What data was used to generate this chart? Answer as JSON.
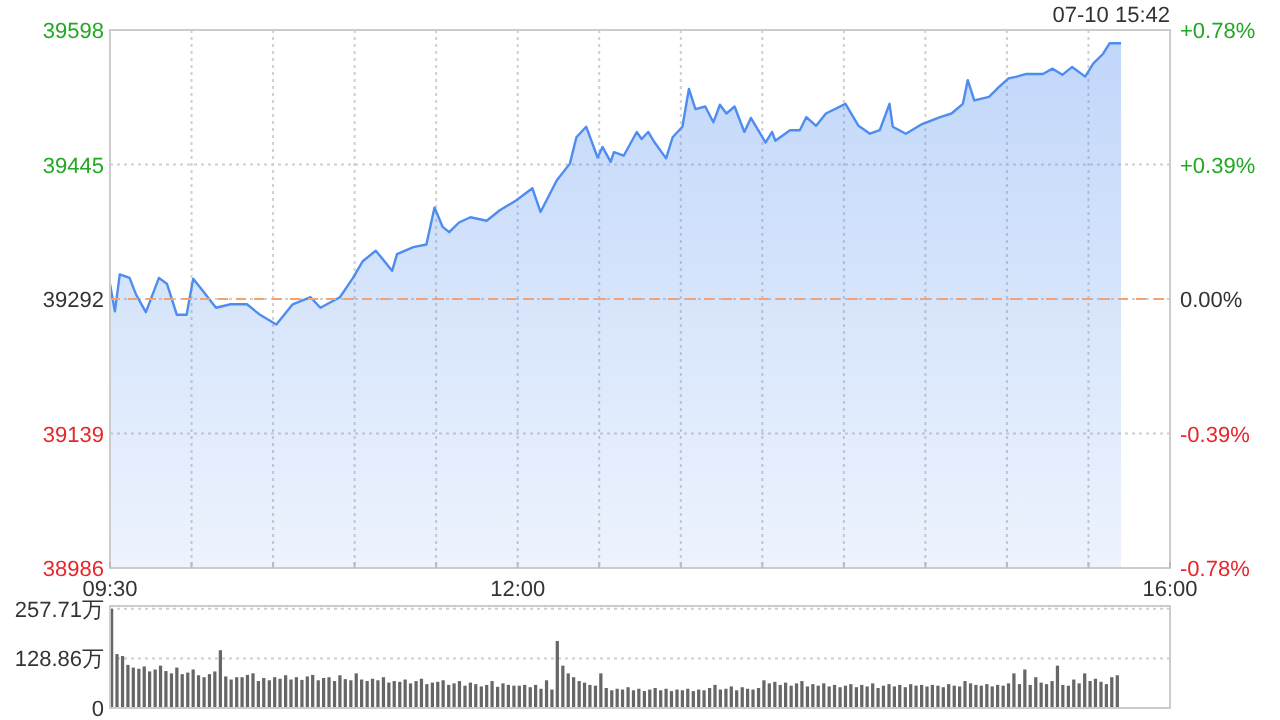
{
  "chart_data": [
    {
      "type": "area",
      "annotations": [
        "07-10 15:42"
      ],
      "xlim": [
        9.5,
        16
      ],
      "ylim": [
        38986,
        39598
      ],
      "y2lim": [
        -0.78,
        0.78
      ],
      "xticks": [
        {
          "value": 9.5,
          "label": "09:30"
        },
        {
          "value": 10,
          "label": null
        },
        {
          "value": 10.5,
          "label": null
        },
        {
          "value": 11,
          "label": null
        },
        {
          "value": 11.5,
          "label": null
        },
        {
          "value": 12,
          "label": "12:00"
        },
        {
          "value": 12.5,
          "label": null
        },
        {
          "value": 13,
          "label": null
        },
        {
          "value": 13.5,
          "label": null
        },
        {
          "value": 14,
          "label": null
        },
        {
          "value": 14.5,
          "label": null
        },
        {
          "value": 15,
          "label": null
        },
        {
          "value": 15.5,
          "label": null
        },
        {
          "value": 16,
          "label": "16:00"
        }
      ],
      "yticks": [
        38986,
        39139,
        39292,
        39445,
        39598
      ],
      "y2ticks": [
        {
          "value": -0.78,
          "label": "-0.78%"
        },
        {
          "value": -0.39,
          "label": "-0.39%"
        },
        {
          "value": 0,
          "label": "0.00%"
        },
        {
          "value": 0.39,
          "label": "+0.39%"
        },
        {
          "value": 0.78,
          "label": "+0.78%"
        }
      ],
      "grid": true,
      "ref_lines": [
        {
          "axis": "y",
          "value": 39292,
          "color": "#f4a26e",
          "line_style": "dashed"
        }
      ],
      "series": [
        {
          "color": "#4e8cf0",
          "x": [
            9.5,
            9.53,
            9.56,
            9.62,
            9.66,
            9.72,
            9.8,
            9.85,
            9.91,
            9.97,
            10.01,
            10.07,
            10.15,
            10.24,
            10.34,
            10.42,
            10.52,
            10.62,
            10.73,
            10.79,
            10.91,
            10.99,
            11.05,
            11.13,
            11.23,
            11.26,
            11.36,
            11.44,
            11.49,
            11.54,
            11.58,
            11.64,
            11.71,
            11.81,
            11.89,
            11.99,
            12.09,
            12.14,
            12.24,
            12.32,
            12.36,
            12.42,
            12.49,
            12.52,
            12.57,
            12.59,
            12.65,
            12.73,
            12.76,
            12.8,
            12.84,
            12.91,
            12.95,
            13.01,
            13.05,
            13.09,
            13.15,
            13.2,
            13.24,
            13.28,
            13.33,
            13.39,
            13.43,
            13.52,
            13.56,
            13.58,
            13.67,
            13.73,
            13.77,
            13.83,
            13.89,
            14.01,
            14.09,
            14.16,
            14.22,
            14.28,
            14.3,
            14.38,
            14.48,
            14.59,
            14.66,
            14.73,
            14.76,
            14.8,
            14.89,
            14.95,
            15.01,
            15.06,
            15.12,
            15.22,
            15.28,
            15.34,
            15.4,
            15.48,
            15.53,
            15.59,
            15.63,
            15.7
          ],
          "values": [
            39309,
            39278,
            39320,
            39316,
            39297,
            39277,
            39316,
            39309,
            39274,
            39274,
            39315,
            39301,
            39282,
            39286,
            39286,
            39274,
            39263,
            39286,
            39294,
            39282,
            39294,
            39316,
            39335,
            39347,
            39324,
            39343,
            39351,
            39354,
            39396,
            39374,
            39368,
            39379,
            39385,
            39381,
            39393,
            39404,
            39418,
            39391,
            39427,
            39446,
            39476,
            39488,
            39453,
            39465,
            39448,
            39459,
            39455,
            39482,
            39474,
            39482,
            39470,
            39452,
            39476,
            39488,
            39531,
            39508,
            39511,
            39493,
            39513,
            39503,
            39511,
            39482,
            39498,
            39470,
            39482,
            39472,
            39484,
            39484,
            39499,
            39489,
            39503,
            39514,
            39489,
            39480,
            39484,
            39514,
            39488,
            39480,
            39491,
            39499,
            39503,
            39514,
            39541,
            39518,
            39522,
            39533,
            39543,
            39545,
            39548,
            39548,
            39554,
            39547,
            39556,
            39545,
            39560,
            39571,
            39583,
            39583
          ]
        }
      ]
    },
    {
      "type": "bar",
      "xlim": [
        9.5,
        16
      ],
      "ylim": [
        0,
        265
      ],
      "tick_labels": "y",
      "grid": "y",
      "yticks": [
        0,
        {
          "value": 128.86,
          "label": "128.86万"
        },
        {
          "value": 257.71,
          "label": "257.71万"
        }
      ],
      "series": [
        {
          "color": "#666666",
          "x": [
            9.5,
            9.533,
            9.567,
            9.6,
            9.633,
            9.667,
            9.7,
            9.733,
            9.767,
            9.8,
            9.833,
            9.867,
            9.9,
            9.933,
            9.967,
            10,
            10.033,
            10.067,
            10.1,
            10.133,
            10.167,
            10.2,
            10.233,
            10.267,
            10.3,
            10.333,
            10.367,
            10.4,
            10.433,
            10.467,
            10.5,
            10.533,
            10.567,
            10.6,
            10.633,
            10.667,
            10.7,
            10.733,
            10.767,
            10.8,
            10.833,
            10.867,
            10.9,
            10.933,
            10.967,
            11,
            11.033,
            11.067,
            11.1,
            11.133,
            11.167,
            11.2,
            11.233,
            11.267,
            11.3,
            11.333,
            11.367,
            11.4,
            11.433,
            11.467,
            11.5,
            11.533,
            11.567,
            11.6,
            11.633,
            11.667,
            11.7,
            11.733,
            11.767,
            11.8,
            11.833,
            11.867,
            11.9,
            11.933,
            11.967,
            12,
            12.033,
            12.067,
            12.1,
            12.133,
            12.167,
            12.2,
            12.233,
            12.267,
            12.3,
            12.333,
            12.367,
            12.4,
            12.433,
            12.467,
            12.5,
            12.533,
            12.567,
            12.6,
            12.633,
            12.667,
            12.7,
            12.733,
            12.767,
            12.8,
            12.833,
            12.867,
            12.9,
            12.933,
            12.967,
            13,
            13.033,
            13.067,
            13.1,
            13.133,
            13.167,
            13.2,
            13.233,
            13.267,
            13.3,
            13.333,
            13.367,
            13.4,
            13.433,
            13.467,
            13.5,
            13.533,
            13.567,
            13.6,
            13.633,
            13.667,
            13.7,
            13.733,
            13.767,
            13.8,
            13.833,
            13.867,
            13.9,
            13.933,
            13.967,
            14,
            14.033,
            14.067,
            14.1,
            14.133,
            14.167,
            14.2,
            14.233,
            14.267,
            14.3,
            14.333,
            14.367,
            14.4,
            14.433,
            14.467,
            14.5,
            14.533,
            14.567,
            14.6,
            14.633,
            14.667,
            14.7,
            14.733,
            14.767,
            14.8,
            14.833,
            14.867,
            14.9,
            14.933,
            14.967,
            15,
            15.033,
            15.067,
            15.1,
            15.133,
            15.167,
            15.2,
            15.233,
            15.267,
            15.3,
            15.333,
            15.367,
            15.4,
            15.433,
            15.467,
            15.5,
            15.533,
            15.567,
            15.6,
            15.633,
            15.667
          ],
          "values": [
            257.71,
            140,
            135,
            112,
            105,
            102,
            108,
            95,
            100,
            110,
            96,
            90,
            105,
            88,
            92,
            100,
            85,
            80,
            88,
            95,
            150,
            82,
            74,
            80,
            80,
            86,
            90,
            70,
            78,
            72,
            80,
            76,
            85,
            74,
            80,
            73,
            82,
            86,
            72,
            78,
            80,
            70,
            85,
            75,
            72,
            90,
            74,
            70,
            76,
            72,
            80,
            66,
            70,
            68,
            74,
            64,
            70,
            76,
            62,
            66,
            68,
            72,
            60,
            64,
            70,
            58,
            66,
            62,
            56,
            60,
            70,
            55,
            64,
            60,
            58,
            58,
            60,
            54,
            60,
            50,
            72,
            48,
            174,
            110,
            90,
            80,
            70,
            66,
            60,
            58,
            90,
            52,
            46,
            50,
            48,
            54,
            46,
            50,
            44,
            48,
            52,
            46,
            50,
            44,
            48,
            46,
            50,
            44,
            48,
            46,
            52,
            60,
            48,
            50,
            56,
            46,
            54,
            50,
            48,
            52,
            72,
            64,
            68,
            60,
            66,
            58,
            64,
            70,
            56,
            62,
            58,
            64,
            56,
            60,
            54,
            58,
            62,
            54,
            60,
            56,
            64,
            52,
            58,
            62,
            56,
            60,
            54,
            62,
            58,
            60,
            56,
            60,
            58,
            54,
            62,
            58,
            56,
            70,
            64,
            60,
            58,
            62,
            56,
            60,
            58,
            64,
            90,
            62,
            100,
            60,
            80,
            66,
            62,
            70,
            110,
            60,
            58,
            74,
            64,
            90,
            70,
            76,
            68,
            62,
            80,
            85
          ]
        }
      ]
    }
  ]
}
